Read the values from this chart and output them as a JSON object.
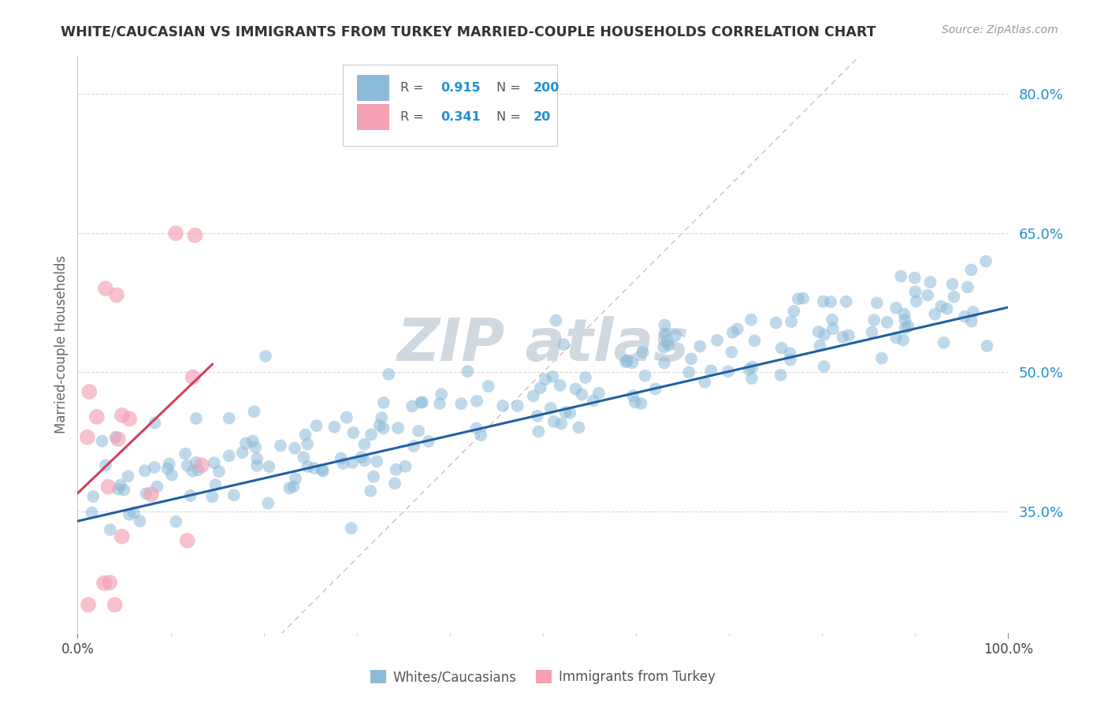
{
  "title": "WHITE/CAUCASIAN VS IMMIGRANTS FROM TURKEY MARRIED-COUPLE HOUSEHOLDS CORRELATION CHART",
  "source": "Source: ZipAtlas.com",
  "ylabel": "Married-couple Households",
  "ytick_values": [
    0.35,
    0.5,
    0.65,
    0.8
  ],
  "ytick_labels": [
    "35.0%",
    "50.0%",
    "65.0%",
    "80.0%"
  ],
  "blue_N": 200,
  "blue_R": 0.915,
  "pink_N": 20,
  "pink_R": 0.341,
  "xmin": 0.0,
  "xmax": 1.0,
  "ymin": 0.22,
  "ymax": 0.84,
  "blue_color": "#8bbbd9",
  "pink_color": "#f4a0b5",
  "blue_line_color": "#2060a0",
  "pink_line_color": "#d04060",
  "diagonal_color": "#d0b0b0",
  "title_color": "#333333",
  "tick_color": "#2090d0",
  "grid_color": "#d8d8d8",
  "background_color": "#ffffff",
  "watermark_color": "#d0d8e0",
  "source_color": "#999999"
}
